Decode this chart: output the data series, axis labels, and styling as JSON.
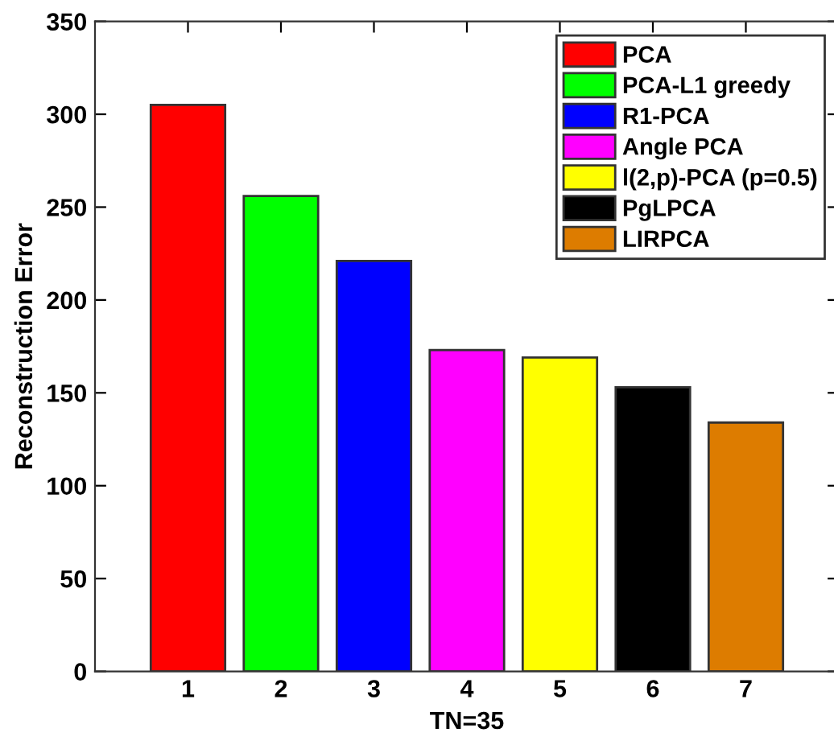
{
  "chart_data": {
    "type": "bar",
    "xlabel": "TN=35",
    "ylabel": "Reconstruction Error",
    "categories": [
      "1",
      "2",
      "3",
      "4",
      "5",
      "6",
      "7"
    ],
    "series": [
      {
        "name": "PCA",
        "color": "#ff0000",
        "values": [
          305,
          null,
          null,
          null,
          null,
          null,
          null
        ]
      },
      {
        "name": "PCA-L1 greedy",
        "color": "#00ff00",
        "values": [
          null,
          256,
          null,
          null,
          null,
          null,
          null
        ]
      },
      {
        "name": "R1-PCA",
        "color": "#0000ff",
        "values": [
          null,
          null,
          221,
          null,
          null,
          null,
          null
        ]
      },
      {
        "name": "Angle PCA",
        "color": "#ff00ff",
        "values": [
          null,
          null,
          null,
          173,
          null,
          null,
          null
        ]
      },
      {
        "name": "l(2,p)-PCA (p=0.5)",
        "color": "#ffff00",
        "values": [
          null,
          null,
          null,
          null,
          169,
          null,
          null
        ]
      },
      {
        "name": "PgLPCA",
        "color": "#000000",
        "values": [
          null,
          null,
          null,
          null,
          null,
          153,
          null
        ]
      },
      {
        "name": "LIRPCA",
        "color": "#dd7c00",
        "values": [
          null,
          null,
          null,
          null,
          null,
          null,
          134
        ]
      }
    ],
    "ylim": [
      0,
      350
    ],
    "yticks": [
      0,
      50,
      100,
      150,
      200,
      250,
      300,
      350
    ],
    "grid": false,
    "legend": "top right"
  }
}
